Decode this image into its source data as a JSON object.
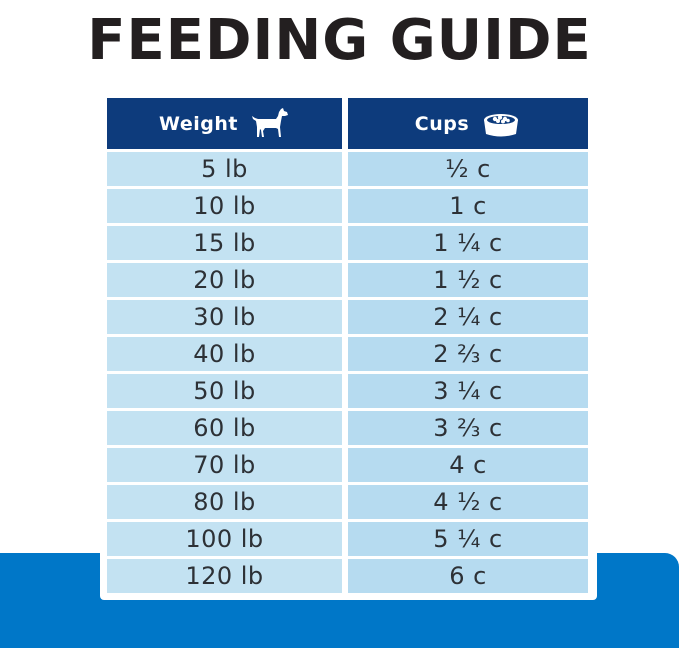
{
  "title": "FEEDING GUIDE",
  "table": {
    "headers": {
      "weight": "Weight",
      "cups": "Cups"
    },
    "header_icons": {
      "weight": "dog-icon",
      "cups": "food-bowl-icon"
    },
    "rows": [
      {
        "weight": "5 lb",
        "cups": "½ c"
      },
      {
        "weight": "10 lb",
        "cups": "1 c"
      },
      {
        "weight": "15 lb",
        "cups": "1 ¼ c"
      },
      {
        "weight": "20 lb",
        "cups": "1 ½ c"
      },
      {
        "weight": "30 lb",
        "cups": "2 ¼ c"
      },
      {
        "weight": "40 lb",
        "cups": "2 ⅔ c"
      },
      {
        "weight": "50 lb",
        "cups": "3 ¼ c"
      },
      {
        "weight": "60 lb",
        "cups": "3 ⅔ c"
      },
      {
        "weight": "70 lb",
        "cups": "4 c"
      },
      {
        "weight": "80 lb",
        "cups": "4 ½ c"
      },
      {
        "weight": "100 lb",
        "cups": "5 ¼ c"
      },
      {
        "weight": "120 lb",
        "cups": "6 c"
      }
    ]
  },
  "colors": {
    "header_bg": "#0d3b7c",
    "row_bg": "#c3e2f2",
    "accent_band": "#0077c8",
    "title_text": "#231f20"
  }
}
